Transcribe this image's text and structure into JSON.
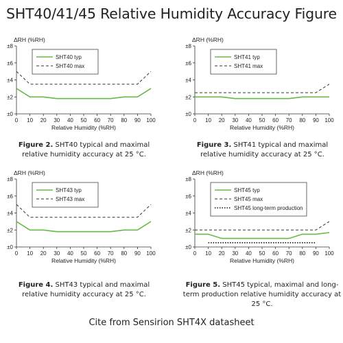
{
  "title": "SHT40/41/45 Relative Humidity Accuracy Figure",
  "footer": "Cite from Sensirion SHT4X datasheet",
  "colors": {
    "typ": "#66bb44",
    "max": "#333333",
    "longterm": "#111111",
    "axis": "#333333"
  },
  "chart_data": [
    {
      "type": "line",
      "ylabel": "ΔRH (%RH)",
      "xlabel": "Relative Humidity (%RH)",
      "xlim": [
        0,
        100
      ],
      "ylim": [
        0,
        8
      ],
      "x_ticks": [
        "0",
        "10",
        "20",
        "30",
        "40",
        "50",
        "60",
        "70",
        "80",
        "90",
        "100"
      ],
      "y_ticks": [
        "±0",
        "±2",
        "±4",
        "±6",
        "±8"
      ],
      "legend": "top-center",
      "x": [
        0,
        10,
        20,
        30,
        40,
        50,
        60,
        70,
        80,
        90,
        100
      ],
      "series": [
        {
          "name": "SHT40 typ",
          "style": "solid",
          "values": [
            3,
            2,
            2,
            1.8,
            1.8,
            1.8,
            1.8,
            1.8,
            2,
            2,
            3
          ]
        },
        {
          "name": "SHT40 max",
          "style": "dashed",
          "values": [
            5,
            3.5,
            3.5,
            3.5,
            3.5,
            3.5,
            3.5,
            3.5,
            3.5,
            3.5,
            5
          ]
        }
      ],
      "caption_prefix": "Figure 2.",
      "caption_text": "SHT40 typical and maximal relative humidity accuracy at 25 °C."
    },
    {
      "type": "line",
      "ylabel": "ΔRH (%RH)",
      "xlabel": "Relative Humidity (%RH)",
      "xlim": [
        0,
        100
      ],
      "ylim": [
        0,
        8
      ],
      "x_ticks": [
        "0",
        "10",
        "20",
        "30",
        "40",
        "50",
        "60",
        "70",
        "80",
        "90",
        "100"
      ],
      "y_ticks": [
        "±0",
        "±2",
        "±4",
        "±6",
        "±8"
      ],
      "legend": "top-center",
      "x": [
        0,
        10,
        20,
        30,
        40,
        50,
        60,
        70,
        80,
        90,
        100
      ],
      "series": [
        {
          "name": "SHT41 typ",
          "style": "solid",
          "values": [
            2,
            2,
            2,
            1.8,
            1.8,
            1.8,
            1.8,
            1.8,
            2,
            2,
            2
          ]
        },
        {
          "name": "SHT41 max",
          "style": "dashed",
          "values": [
            2.5,
            2.5,
            2.5,
            2.5,
            2.5,
            2.5,
            2.5,
            2.5,
            2.5,
            2.5,
            3.5
          ]
        }
      ],
      "caption_prefix": "Figure 3.",
      "caption_text": "SHT41 typical and maximal relative humidity accuracy at 25 °C."
    },
    {
      "type": "line",
      "ylabel": "ΔRH (%RH)",
      "xlabel": "Relative Humidity (%RH)",
      "xlim": [
        0,
        100
      ],
      "ylim": [
        0,
        8
      ],
      "x_ticks": [
        "0",
        "10",
        "20",
        "30",
        "40",
        "50",
        "60",
        "70",
        "80",
        "90",
        "100"
      ],
      "y_ticks": [
        "±0",
        "±2",
        "±4",
        "±6",
        "±8"
      ],
      "legend": "top-center",
      "x": [
        0,
        10,
        20,
        30,
        40,
        50,
        60,
        70,
        80,
        90,
        100
      ],
      "series": [
        {
          "name": "SHT43 typ",
          "style": "solid",
          "values": [
            3,
            2,
            2,
            1.8,
            1.8,
            1.8,
            1.8,
            1.8,
            2,
            2,
            3
          ]
        },
        {
          "name": "SHT43 max",
          "style": "dashed",
          "values": [
            5,
            3.5,
            3.5,
            3.5,
            3.5,
            3.5,
            3.5,
            3.5,
            3.5,
            3.5,
            5
          ]
        }
      ],
      "caption_prefix": "Figure 4.",
      "caption_text": "SHT43 typical and maximal relative humidity accuracy at 25 °C."
    },
    {
      "type": "line",
      "ylabel": "ΔRH (%RH)",
      "xlabel": "Relative Humidity (%RH)",
      "xlim": [
        0,
        100
      ],
      "ylim": [
        0,
        8
      ],
      "x_ticks": [
        "0",
        "10",
        "20",
        "30",
        "40",
        "50",
        "60",
        "70",
        "80",
        "90",
        "100"
      ],
      "y_ticks": [
        "±0",
        "±2",
        "±4",
        "±6",
        "±8"
      ],
      "legend": "top-center",
      "x": [
        0,
        10,
        20,
        30,
        40,
        50,
        60,
        70,
        80,
        90,
        100
      ],
      "series": [
        {
          "name": "SHT45 typ",
          "style": "solid",
          "values": [
            1.5,
            1.5,
            1,
            1,
            1,
            1,
            1,
            1,
            1.5,
            1.5,
            1.7
          ]
        },
        {
          "name": "SHT45 max",
          "style": "dashed",
          "values": [
            2,
            2,
            2,
            2,
            2,
            2,
            2,
            2,
            2,
            2,
            3
          ]
        },
        {
          "name": "SHT45 long-term production",
          "style": "dotted",
          "x": [
            10,
            90
          ],
          "values": [
            0.5,
            0.5
          ]
        }
      ],
      "caption_prefix": "Figure 5.",
      "caption_text": "SHT45 typical, maximal and long-term production relative humidity accuracy at 25 °C."
    }
  ]
}
